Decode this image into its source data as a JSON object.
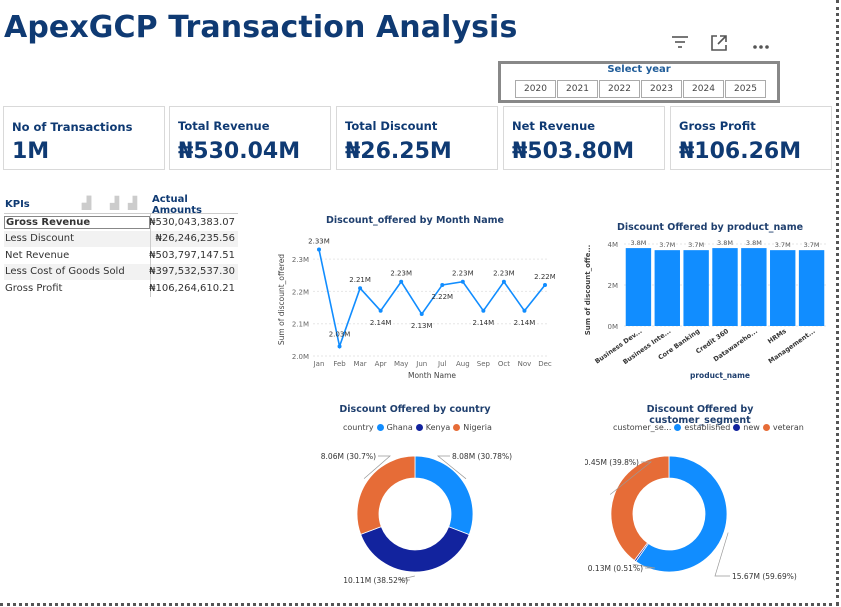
{
  "title": "ApexGCP Transaction Analysis",
  "toolbar": {
    "filter_icon": "filter-icon",
    "focus_icon": "focus-mode-icon",
    "more_icon": "more-options-icon"
  },
  "slicer": {
    "title": "Select year",
    "years": [
      "2020",
      "2021",
      "2022",
      "2023",
      "2024",
      "2025"
    ]
  },
  "cards": [
    {
      "label": "No of Transactions",
      "value": "1M"
    },
    {
      "label": "Total Revenue",
      "value": "₦530.04M"
    },
    {
      "label": "Total Discount",
      "value": "₦26.25M"
    },
    {
      "label": "Net Revenue",
      "value": "₦503.80M"
    },
    {
      "label": "Gross Profit",
      "value": "₦106.26M"
    }
  ],
  "kpi_table": {
    "headers": [
      "KPIs",
      "Actual Amounts"
    ],
    "rows": [
      {
        "kpi": "Gross Revenue",
        "amount": "₦530,043,383.07"
      },
      {
        "kpi": "Less Discount",
        "amount": "₦26,246,235.56"
      },
      {
        "kpi": "Net Revenue",
        "amount": "₦503,797,147.51"
      },
      {
        "kpi": "Less Cost of Goods Sold",
        "amount": "₦397,532,537.30"
      },
      {
        "kpi": "Gross Profit",
        "amount": "₦106,264,610.21"
      }
    ]
  },
  "colors": {
    "title": "#0f3a73",
    "blue": "#118dff",
    "navy": "#12239e",
    "orange": "#e66c37"
  },
  "chart_data": [
    {
      "type": "line",
      "title": "Discount_offered by Month Name",
      "xlabel": "Month Name",
      "ylabel": "Sum of discount_offered",
      "categories": [
        "Jan",
        "Feb",
        "Mar",
        "Apr",
        "May",
        "Jun",
        "Jul",
        "Aug",
        "Sep",
        "Oct",
        "Nov",
        "Dec"
      ],
      "values": [
        2.33,
        2.03,
        2.21,
        2.14,
        2.23,
        2.13,
        2.22,
        2.23,
        2.14,
        2.23,
        2.14,
        2.22
      ],
      "labels": [
        "2.33M",
        "2.03M",
        "2.21M",
        "2.14M",
        "2.23M",
        "2.13M",
        "2.22M",
        "2.23M",
        "2.14M",
        "2.23M",
        "2.14M",
        "2.22M"
      ],
      "yticks": [
        "2.0M",
        "2.1M",
        "2.2M",
        "2.3M"
      ],
      "ylim": [
        2.0,
        2.35
      ],
      "grid": true
    },
    {
      "type": "bar",
      "title": "Discount Offered by product_name",
      "xlabel": "product_name",
      "ylabel": "Sum of discount_offe...",
      "categories": [
        "Business Dev...",
        "Business Inte...",
        "Core Banking",
        "Credit 360",
        "Datawareho...",
        "HRMs",
        "Management..."
      ],
      "values": [
        3.8,
        3.7,
        3.7,
        3.8,
        3.8,
        3.7,
        3.7
      ],
      "labels": [
        "3.8M",
        "3.7M",
        "3.7M",
        "3.8M",
        "3.8M",
        "3.7M",
        "3.7M"
      ],
      "yticks": [
        "0M",
        "2M",
        "4M"
      ],
      "ylim": [
        0,
        4
      ],
      "grid": true
    },
    {
      "type": "pie",
      "title": "Discount Offered by country",
      "legend_title": "country",
      "series": [
        {
          "name": "Ghana",
          "value": 30.78,
          "label": "8.08M (30.78%)",
          "color": "#118dff"
        },
        {
          "name": "Kenya",
          "value": 38.52,
          "label": "10.11M (38.52%)",
          "color": "#12239e"
        },
        {
          "name": "Nigeria",
          "value": 30.7,
          "label": "8.06M (30.7%)",
          "color": "#e66c37"
        }
      ]
    },
    {
      "type": "pie",
      "title": "Discount Offered by customer_segment",
      "legend_title": "customer_se...",
      "series": [
        {
          "name": "established",
          "value": 59.69,
          "label": "15.67M (59.69%)",
          "color": "#118dff"
        },
        {
          "name": "new",
          "value": 0.51,
          "label": "0.13M (0.51%)",
          "color": "#12239e"
        },
        {
          "name": "veteran",
          "value": 39.8,
          "label": "10.45M (39.8%)",
          "color": "#e66c37"
        }
      ]
    }
  ]
}
